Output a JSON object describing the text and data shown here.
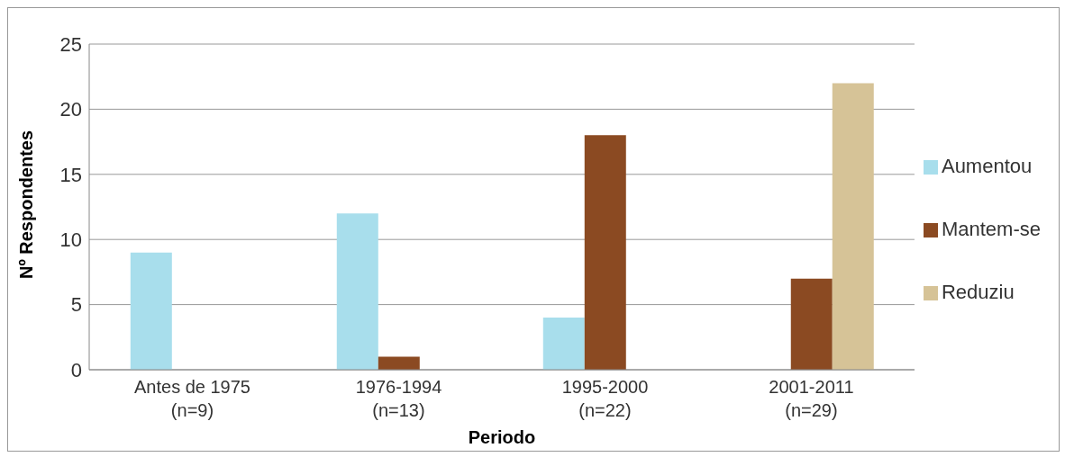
{
  "chart_data": {
    "type": "bar",
    "xlabel": "Periodo",
    "ylabel": "Nº Respondentes",
    "categories": [
      "Antes de 1975\n(n=9)",
      "1976-1994\n(n=13)",
      "1995-2000\n(n=22)",
      "2001-2011\n(n=29)"
    ],
    "series": [
      {
        "name": "Aumentou",
        "color": "#a8deec",
        "values": [
          9,
          12,
          4,
          0
        ]
      },
      {
        "name": "Mantem-se",
        "color": "#8b4a22",
        "values": [
          0,
          1,
          18,
          7
        ]
      },
      {
        "name": "Reduziu",
        "color": "#d6c397",
        "values": [
          0,
          0,
          0,
          22
        ]
      }
    ],
    "ylim": [
      0,
      25
    ],
    "yticks": [
      0,
      5,
      10,
      15,
      20,
      25
    ],
    "grid": "y",
    "legend": "right"
  }
}
